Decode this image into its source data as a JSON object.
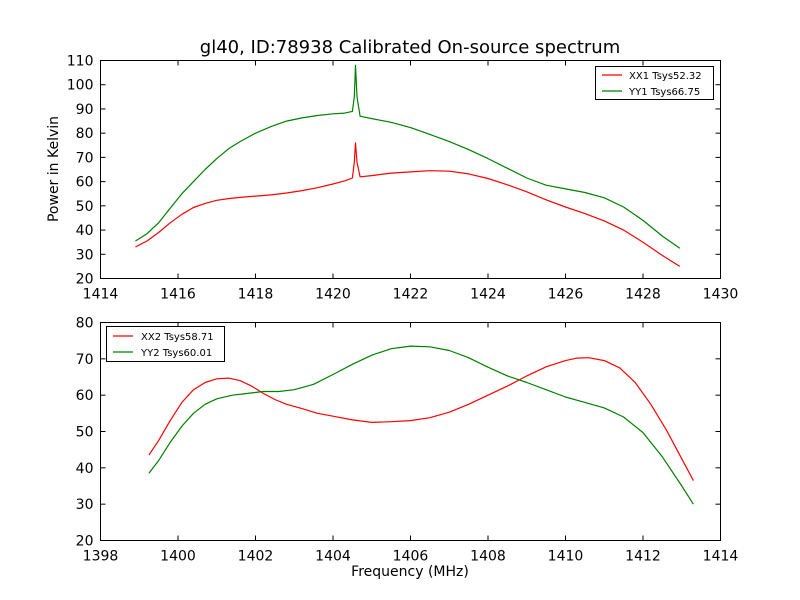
{
  "chart_data": [
    {
      "type": "line",
      "title": "gl40, ID:78938 Calibrated On-source spectrum",
      "xlabel": "",
      "ylabel": "Power in Kelvin",
      "xlim": [
        1414,
        1430
      ],
      "ylim": [
        20,
        110
      ],
      "xticks": [
        "1414",
        "1416",
        "1418",
        "1420",
        "1422",
        "1424",
        "1426",
        "1428",
        "1430"
      ],
      "yticks": [
        "20",
        "30",
        "40",
        "50",
        "60",
        "70",
        "80",
        "90",
        "100",
        "110"
      ],
      "grid": false,
      "legend_position": "top-right",
      "series": [
        {
          "name": "XX1 Tsys52.32",
          "color": "#ff0000",
          "points": [
            [
              1414.9,
              33
            ],
            [
              1415.2,
              35.5
            ],
            [
              1415.5,
              39
            ],
            [
              1415.8,
              43
            ],
            [
              1416.1,
              46.5
            ],
            [
              1416.4,
              49.3
            ],
            [
              1416.7,
              51
            ],
            [
              1417.0,
              52.3
            ],
            [
              1417.3,
              53
            ],
            [
              1417.6,
              53.5
            ],
            [
              1418.0,
              54
            ],
            [
              1418.4,
              54.5
            ],
            [
              1418.8,
              55.3
            ],
            [
              1419.2,
              56.3
            ],
            [
              1419.6,
              57.5
            ],
            [
              1420.0,
              59
            ],
            [
              1420.3,
              60.3
            ],
            [
              1420.5,
              61.5
            ],
            [
              1420.55,
              68
            ],
            [
              1420.58,
              76
            ],
            [
              1420.62,
              68
            ],
            [
              1420.7,
              62
            ],
            [
              1421.0,
              62.5
            ],
            [
              1421.5,
              63.5
            ],
            [
              1422.0,
              64
            ],
            [
              1422.5,
              64.5
            ],
            [
              1423.0,
              64.3
            ],
            [
              1423.5,
              63.2
            ],
            [
              1424.0,
              61.3
            ],
            [
              1424.5,
              58.7
            ],
            [
              1425.0,
              55.8
            ],
            [
              1425.5,
              52.5
            ],
            [
              1426.0,
              49.5
            ],
            [
              1426.5,
              46.8
            ],
            [
              1427.0,
              43.8
            ],
            [
              1427.5,
              40
            ],
            [
              1428.0,
              35
            ],
            [
              1428.5,
              29.5
            ],
            [
              1428.95,
              25
            ]
          ]
        },
        {
          "name": "YY1 Tsys66.75",
          "color": "#008000",
          "points": [
            [
              1414.9,
              35.5
            ],
            [
              1415.2,
              38.5
            ],
            [
              1415.5,
              43
            ],
            [
              1415.8,
              49
            ],
            [
              1416.1,
              55
            ],
            [
              1416.4,
              60
            ],
            [
              1416.7,
              65
            ],
            [
              1417.0,
              69.5
            ],
            [
              1417.3,
              73.5
            ],
            [
              1417.6,
              76.5
            ],
            [
              1418.0,
              80
            ],
            [
              1418.4,
              82.7
            ],
            [
              1418.8,
              85
            ],
            [
              1419.2,
              86.3
            ],
            [
              1419.6,
              87.3
            ],
            [
              1420.0,
              88
            ],
            [
              1420.3,
              88.3
            ],
            [
              1420.5,
              89
            ],
            [
              1420.55,
              95
            ],
            [
              1420.58,
              108
            ],
            [
              1420.62,
              95
            ],
            [
              1420.7,
              87
            ],
            [
              1421.0,
              86
            ],
            [
              1421.5,
              84.5
            ],
            [
              1422.0,
              82.3
            ],
            [
              1422.5,
              79.5
            ],
            [
              1423.0,
              76.5
            ],
            [
              1423.5,
              73.2
            ],
            [
              1424.0,
              69.5
            ],
            [
              1424.5,
              65.5
            ],
            [
              1425.0,
              61.5
            ],
            [
              1425.5,
              58.5
            ],
            [
              1426.0,
              57
            ],
            [
              1426.5,
              55.5
            ],
            [
              1427.0,
              53.3
            ],
            [
              1427.5,
              49.5
            ],
            [
              1428.0,
              44
            ],
            [
              1428.5,
              37.5
            ],
            [
              1428.95,
              32.5
            ]
          ]
        }
      ]
    },
    {
      "type": "line",
      "title": "",
      "xlabel": "Frequency (MHz)",
      "ylabel": "",
      "xlim": [
        1398,
        1414
      ],
      "ylim": [
        20,
        80
      ],
      "xticks": [
        "1398",
        "1400",
        "1402",
        "1404",
        "1406",
        "1408",
        "1410",
        "1412",
        "1414"
      ],
      "yticks": [
        "20",
        "30",
        "40",
        "50",
        "60",
        "70",
        "80"
      ],
      "grid": false,
      "legend_position": "top-left",
      "series": [
        {
          "name": "XX2 Tsys58.71",
          "color": "#ff0000",
          "points": [
            [
              1399.25,
              43.5
            ],
            [
              1399.5,
              47.5
            ],
            [
              1399.8,
              53
            ],
            [
              1400.1,
              58
            ],
            [
              1400.4,
              61.5
            ],
            [
              1400.7,
              63.5
            ],
            [
              1401.0,
              64.5
            ],
            [
              1401.3,
              64.7
            ],
            [
              1401.6,
              64
            ],
            [
              1401.9,
              62.5
            ],
            [
              1402.2,
              60.5
            ],
            [
              1402.5,
              58.8
            ],
            [
              1402.8,
              57.5
            ],
            [
              1403.2,
              56.3
            ],
            [
              1403.6,
              55
            ],
            [
              1404.0,
              54.2
            ],
            [
              1404.5,
              53.2
            ],
            [
              1405.0,
              52.5
            ],
            [
              1405.5,
              52.7
            ],
            [
              1406.0,
              53
            ],
            [
              1406.5,
              53.8
            ],
            [
              1407.0,
              55.3
            ],
            [
              1407.5,
              57.5
            ],
            [
              1408.0,
              60
            ],
            [
              1408.5,
              62.5
            ],
            [
              1409.0,
              65.3
            ],
            [
              1409.5,
              67.8
            ],
            [
              1410.0,
              69.5
            ],
            [
              1410.3,
              70.2
            ],
            [
              1410.6,
              70.3
            ],
            [
              1411.0,
              69.5
            ],
            [
              1411.4,
              67.5
            ],
            [
              1411.8,
              63.5
            ],
            [
              1412.2,
              57.5
            ],
            [
              1412.6,
              50.5
            ],
            [
              1413.0,
              42.5
            ],
            [
              1413.3,
              36.5
            ]
          ]
        },
        {
          "name": "YY2 Tsys60.01",
          "color": "#008000",
          "points": [
            [
              1399.25,
              38.5
            ],
            [
              1399.5,
              42
            ],
            [
              1399.8,
              47
            ],
            [
              1400.1,
              51.5
            ],
            [
              1400.4,
              55
            ],
            [
              1400.7,
              57.5
            ],
            [
              1401.0,
              59
            ],
            [
              1401.4,
              60
            ],
            [
              1401.8,
              60.5
            ],
            [
              1402.2,
              61
            ],
            [
              1402.6,
              61
            ],
            [
              1403.0,
              61.5
            ],
            [
              1403.5,
              63
            ],
            [
              1404.0,
              65.7
            ],
            [
              1404.5,
              68.5
            ],
            [
              1405.0,
              71
            ],
            [
              1405.5,
              72.8
            ],
            [
              1406.0,
              73.5
            ],
            [
              1406.5,
              73.3
            ],
            [
              1407.0,
              72.3
            ],
            [
              1407.5,
              70.3
            ],
            [
              1408.0,
              67.7
            ],
            [
              1408.5,
              65.3
            ],
            [
              1409.0,
              63.5
            ],
            [
              1409.5,
              61.5
            ],
            [
              1410.0,
              59.5
            ],
            [
              1410.5,
              58
            ],
            [
              1411.0,
              56.5
            ],
            [
              1411.5,
              54
            ],
            [
              1412.0,
              49.7
            ],
            [
              1412.5,
              43
            ],
            [
              1413.0,
              35
            ],
            [
              1413.3,
              30
            ]
          ]
        }
      ]
    }
  ]
}
